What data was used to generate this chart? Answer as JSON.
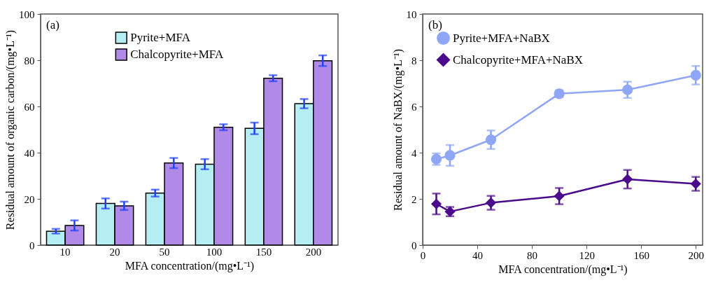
{
  "chart_data": [
    {
      "type": "bar",
      "annotations": [
        "(a)"
      ],
      "xlabel": "MFA concentration/(mg•L⁻¹)",
      "ylabel": "Residual amount of organic carbon/(mg•L⁻¹)",
      "categories": [
        "10",
        "20",
        "50",
        "100",
        "150",
        "200"
      ],
      "ylim": [
        0,
        100
      ],
      "yticks": [
        0,
        20,
        40,
        60,
        80,
        100
      ],
      "grid": false,
      "legend": "top",
      "series": [
        {
          "name": "Pyrite+MFA",
          "color": "#b4eef2",
          "values": [
            6,
            18,
            22.5,
            35,
            50.5,
            61.2
          ],
          "errors": [
            1,
            2.2,
            1.5,
            2.2,
            2.5,
            2
          ]
        },
        {
          "name": "Chalcopyrite+MFA",
          "color": "#b08ae6",
          "values": [
            8.5,
            17,
            35.5,
            51,
            72.2,
            79.8
          ],
          "errors": [
            2.2,
            1.8,
            2.2,
            1.3,
            1.3,
            2.3
          ]
        }
      ]
    },
    {
      "type": "line",
      "annotations": [
        "(b)"
      ],
      "xlabel": "MFA concentration/(mg•L⁻¹)",
      "ylabel": "Residual amount of NaBX/(mg•L⁻¹)",
      "x": [
        10,
        20,
        50,
        100,
        150,
        200
      ],
      "xlim": [
        0,
        205
      ],
      "xticks": [
        0,
        40,
        80,
        120,
        160,
        200
      ],
      "ylim": [
        0,
        10
      ],
      "yticks": [
        0,
        2,
        4,
        6,
        8,
        10
      ],
      "grid": false,
      "legend": "top left",
      "line_style": "solid",
      "series": [
        {
          "name": "Pyrite+MFA+NaBX",
          "color": "#8fa6f6",
          "marker": "circle",
          "values": [
            3.72,
            3.88,
            4.56,
            6.55,
            6.72,
            7.35
          ],
          "errors": [
            0.25,
            0.45,
            0.4,
            0.15,
            0.35,
            0.4
          ]
        },
        {
          "name": "Chalcopyrite+MFA+NaBX",
          "color": "#4b0a8c",
          "marker": "diamond",
          "values": [
            1.78,
            1.45,
            1.83,
            2.12,
            2.85,
            2.65
          ],
          "errors": [
            0.45,
            0.2,
            0.3,
            0.35,
            0.4,
            0.3
          ]
        }
      ]
    }
  ]
}
